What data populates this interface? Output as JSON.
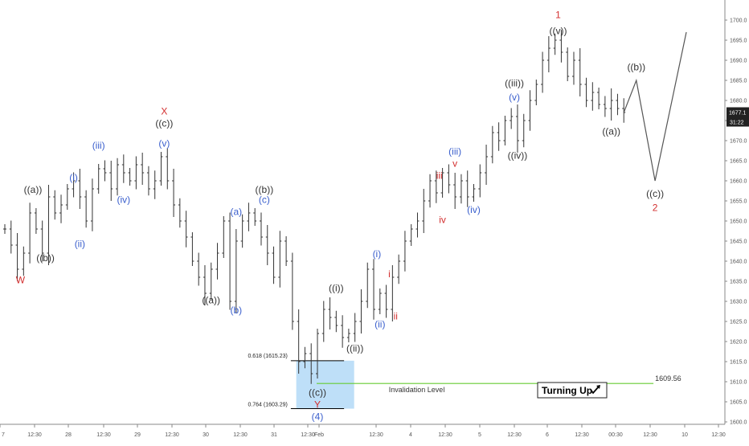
{
  "chart_data": {
    "type": "ohlc",
    "ylim": [
      1597,
      1705
    ],
    "y_ticks": [
      1600,
      1605,
      1610,
      1615,
      1620,
      1625,
      1630,
      1635,
      1640,
      1645,
      1650,
      1655,
      1660,
      1665,
      1670,
      1675,
      1680,
      1685,
      1690,
      1695,
      1700
    ],
    "y_tick_labels": [
      "1600.0",
      "1605.0",
      "1610.0",
      "1615.0",
      "1620.0",
      "1625.0",
      "1630.0",
      "1635.0",
      "1640.0",
      "1645.0",
      "1650.0",
      "1655.0",
      "1660.0",
      "1665.0",
      "1670.0",
      "1675.0",
      "1680.0",
      "1685.0",
      "1690.0",
      "1695.0",
      "1700.0"
    ],
    "x_tick_labels": [
      "7",
      "12:30",
      "28",
      "12:30",
      "29",
      "12:30",
      "30",
      "12:30",
      "31",
      "12:30",
      "Feb",
      "12:30",
      "4",
      "12:30",
      "5",
      "12:30",
      "6",
      "12:30",
      "00:30",
      "12:30",
      "10",
      "12:30"
    ],
    "price_series": {
      "name": "price",
      "values": [
        1648,
        1644,
        1638,
        1642,
        1652,
        1648,
        1642,
        1656,
        1652,
        1654,
        1658,
        1660,
        1656,
        1650,
        1658,
        1663,
        1662,
        1658,
        1664,
        1662,
        1660,
        1664,
        1662,
        1658,
        1660,
        1666,
        1660,
        1654,
        1650,
        1646,
        1640,
        1636,
        1632,
        1638,
        1642,
        1650,
        1630,
        1645,
        1650,
        1652,
        1650,
        1646,
        1642,
        1636,
        1645,
        1640,
        1625,
        1615,
        1617,
        1612,
        1622,
        1628,
        1626,
        1624,
        1621,
        1622,
        1625,
        1630,
        1638,
        1628,
        1632,
        1628,
        1636,
        1640,
        1645,
        1648,
        1650,
        1655,
        1660,
        1657,
        1662,
        1659,
        1656,
        1660,
        1656,
        1658,
        1662,
        1666,
        1672,
        1670,
        1675,
        1676,
        1670,
        1675,
        1680,
        1684,
        1690,
        1693,
        1695,
        1692,
        1686,
        1690,
        1684,
        1680,
        1682,
        1679,
        1678,
        1680,
        1678,
        1677
      ],
      "last_price": "1677.1",
      "countdown": "31:22"
    },
    "projection": {
      "values": [
        1677,
        1685,
        1660,
        1697
      ]
    },
    "wave_labels": [
      {
        "text": "W",
        "color": "#d32f2f",
        "x": 2.5,
        "y": 1634.5
      },
      {
        "text": "((a))",
        "color": "#333333",
        "x": 4.5,
        "y": 1657
      },
      {
        "text": "((b))",
        "color": "#333333",
        "x": 6.5,
        "y": 1640
      },
      {
        "text": "(i)",
        "color": "#3a5fcd",
        "x": 11,
        "y": 1660
      },
      {
        "text": "(ii)",
        "color": "#3a5fcd",
        "x": 12,
        "y": 1643.5
      },
      {
        "text": "(iii)",
        "color": "#3a5fcd",
        "x": 15,
        "y": 1668
      },
      {
        "text": "(iv)",
        "color": "#3a5fcd",
        "x": 19,
        "y": 1654.5
      },
      {
        "text": "(v)",
        "color": "#3a5fcd",
        "x": 25.5,
        "y": 1668.5
      },
      {
        "text": "((c))",
        "color": "#333333",
        "x": 25.5,
        "y": 1673.5
      },
      {
        "text": "X",
        "color": "#d32f2f",
        "x": 25.5,
        "y": 1676.5
      },
      {
        "text": "((a))",
        "color": "#333333",
        "x": 33,
        "y": 1629.5
      },
      {
        "text": "(a)",
        "color": "#3a5fcd",
        "x": 37,
        "y": 1651.5
      },
      {
        "text": "(b)",
        "color": "#3a5fcd",
        "x": 37,
        "y": 1627
      },
      {
        "text": "((b))",
        "color": "#333333",
        "x": 41.5,
        "y": 1657
      },
      {
        "text": "(c)",
        "color": "#3a5fcd",
        "x": 41.5,
        "y": 1654.5
      },
      {
        "text": "((i))",
        "color": "#333333",
        "x": 53,
        "y": 1632.5
      },
      {
        "text": "((ii))",
        "color": "#333333",
        "x": 56,
        "y": 1617.5
      },
      {
        "text": "((c))",
        "color": "#333333",
        "x": 50,
        "y": 1606.5
      },
      {
        "text": "Y",
        "color": "#d32f2f",
        "x": 50,
        "y": 1603.5
      },
      {
        "text": "(4)",
        "color": "#3a5fcd",
        "x": 50,
        "y": 1600.5
      },
      {
        "text": "(i)",
        "color": "#3a5fcd",
        "x": 59.5,
        "y": 1641
      },
      {
        "text": "(ii)",
        "color": "#3a5fcd",
        "x": 60,
        "y": 1623.5
      },
      {
        "text": "i",
        "color": "#d32f2f",
        "x": 61.5,
        "y": 1636
      },
      {
        "text": "ii",
        "color": "#d32f2f",
        "x": 62.5,
        "y": 1625.5
      },
      {
        "text": "iii",
        "color": "#d32f2f",
        "x": 69.5,
        "y": 1660.5
      },
      {
        "text": "iv",
        "color": "#d32f2f",
        "x": 70,
        "y": 1649.5
      },
      {
        "text": "(iii)",
        "color": "#3a5fcd",
        "x": 72,
        "y": 1666.5
      },
      {
        "text": "v",
        "color": "#d32f2f",
        "x": 72,
        "y": 1663.5
      },
      {
        "text": "(iv)",
        "color": "#3a5fcd",
        "x": 75,
        "y": 1652
      },
      {
        "text": "((iii))",
        "color": "#333333",
        "x": 81.5,
        "y": 1683.5
      },
      {
        "text": "(v)",
        "color": "#3a5fcd",
        "x": 81.5,
        "y": 1680
      },
      {
        "text": "((iv))",
        "color": "#333333",
        "x": 82,
        "y": 1665.5
      },
      {
        "text": "((v))",
        "color": "#333333",
        "x": 88.5,
        "y": 1696.5
      },
      {
        "text": "1",
        "color": "#d32f2f",
        "x": 88.5,
        "y": 1700.5
      },
      {
        "text": "((a))",
        "color": "#333333",
        "x": 97,
        "y": 1671.5
      },
      {
        "text": "((b))",
        "color": "#333333",
        "x": 101,
        "y": 1687.5
      },
      {
        "text": "((c))",
        "color": "#333333",
        "x": 104,
        "y": 1656
      },
      {
        "text": "2",
        "color": "#d32f2f",
        "x": 104,
        "y": 1652.5
      }
    ],
    "fib_zone": {
      "top": 1615.23,
      "bottom": 1603.29,
      "top_label": "0.618 (1615.23)",
      "bottom_label": "0.764 (1603.29)",
      "fill": "#b3d9f7"
    },
    "invalidation": {
      "value": 1609.56,
      "label": "Invalidation Level",
      "value_label": "1609.56",
      "color": "#66cc33"
    },
    "annotation": {
      "text": "Turning Up",
      "icon": "arrow-up-right-icon"
    },
    "colors": {
      "price_bar": "#333333",
      "projection": "#555555",
      "price_tag_bg": "#222222",
      "price_tag_text": "#ffffff",
      "axis_text": "#555555"
    }
  }
}
